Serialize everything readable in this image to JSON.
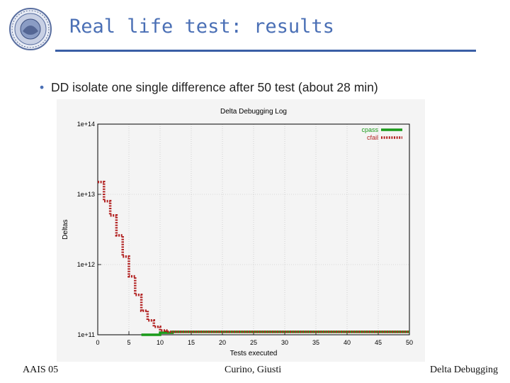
{
  "slide": {
    "title": "Real life test: results",
    "bullet": "DD isolate one single difference after 50 test (about 28 min)"
  },
  "footer": {
    "left": "AAIS 05",
    "center": "Curino, Giusti",
    "right": "Delta Debugging"
  },
  "colors": {
    "title": "#4a6fb5",
    "rule": "#3a5fa6",
    "cpass": "#1a9a1a",
    "cfail": "#b22222"
  },
  "chart_data": {
    "type": "line",
    "title": "Delta Debugging Log",
    "xlabel": "Tests executed",
    "ylabel": "Deltas",
    "xlim": [
      0,
      50
    ],
    "ylim": [
      100000000000.0,
      100000000000000.0
    ],
    "yscale": "log",
    "grid": true,
    "legend_position": "top-right",
    "x_ticks": [
      "0",
      "5",
      "10",
      "15",
      "20",
      "25",
      "30",
      "35",
      "40",
      "45",
      "50"
    ],
    "y_ticks": [
      "1e+11",
      "1e+12",
      "1e+13",
      "1e+14"
    ],
    "series": [
      {
        "name": "cpass",
        "style": "solid",
        "color": "#1a9a1a",
        "x": [
          7,
          10,
          10,
          12,
          12,
          50
        ],
        "y": [
          100000000000.0,
          100000000000.0,
          107000000000.0,
          107000000000.0,
          110000000000.0,
          110000000000.0
        ]
      },
      {
        "name": "cfail",
        "style": "dotted",
        "color": "#b22222",
        "x": [
          0,
          1,
          1,
          2,
          2,
          3,
          3,
          4,
          4,
          5,
          5,
          6,
          6,
          7,
          7,
          8,
          8,
          9,
          9,
          10,
          10,
          11,
          11,
          50
        ],
        "y": [
          15000000000000.0,
          15000000000000.0,
          8000000000000.0,
          8000000000000.0,
          5000000000000.0,
          5000000000000.0,
          2600000000000.0,
          2600000000000.0,
          1300000000000.0,
          1300000000000.0,
          680000000000.0,
          680000000000.0,
          370000000000.0,
          370000000000.0,
          220000000000.0,
          220000000000.0,
          160000000000.0,
          160000000000.0,
          130000000000.0,
          130000000000.0,
          115000000000.0,
          115000000000.0,
          110000000000.0,
          110000000000.0
        ]
      }
    ]
  }
}
